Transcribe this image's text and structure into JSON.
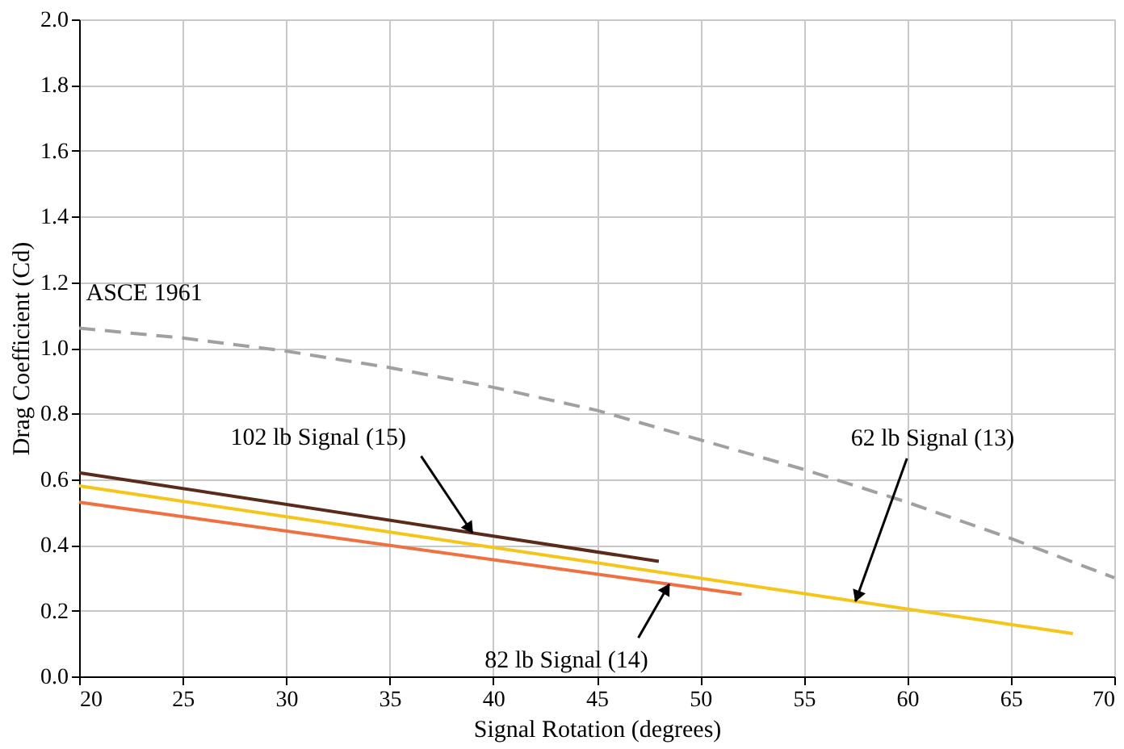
{
  "chart_data": {
    "type": "line",
    "xlabel": "Signal Rotation (degrees)",
    "ylabel": "Drag Coefficient (Cd)",
    "xlim": [
      20,
      70
    ],
    "xticks": [
      20,
      25,
      30,
      35,
      40,
      45,
      50,
      55,
      60,
      65,
      70
    ],
    "ylim": [
      0,
      2.0
    ],
    "yticks": [
      {
        "value": 0,
        "label": "0.0"
      },
      {
        "value": 0.2,
        "label": "0.2"
      },
      {
        "value": 0.4,
        "label": "0.4"
      },
      {
        "value": 0.6,
        "label": "0.6"
      },
      {
        "value": 0.8,
        "label": "0.8"
      },
      {
        "value": 1.0,
        "label": "1.0"
      },
      {
        "value": 1.2,
        "label": "1.2"
      },
      {
        "value": 1.4,
        "label": "1.4"
      },
      {
        "value": 1.6,
        "label": "1.6"
      },
      {
        "value": 1.8,
        "label": "1.8"
      },
      {
        "value": 2.0,
        "label": "2.0"
      }
    ],
    "grid": true,
    "marker": "none",
    "series": [
      {
        "name": "ASCE 1961",
        "color": "#a0a0a0",
        "line_style": "dashed",
        "x": [
          20,
          25,
          30,
          35,
          40,
          45,
          50,
          55,
          60,
          65,
          70
        ],
        "values": [
          1.06,
          1.03,
          0.99,
          0.94,
          0.88,
          0.81,
          0.72,
          0.63,
          0.53,
          0.42,
          0.3
        ]
      },
      {
        "name": "62 lb Signal (13)",
        "color": "#f5c518",
        "line_style": "solid",
        "x": [
          20,
          68
        ],
        "values": [
          0.58,
          0.13
        ]
      },
      {
        "name": "82 lb Signal (14)",
        "color": "#f07040",
        "line_style": "solid",
        "x": [
          20,
          52
        ],
        "values": [
          0.53,
          0.25
        ]
      },
      {
        "name": "102 lb Signal (15)",
        "color": "#5a2a1a",
        "line_style": "solid",
        "x": [
          20,
          48
        ],
        "values": [
          0.62,
          0.35
        ]
      }
    ]
  }
}
